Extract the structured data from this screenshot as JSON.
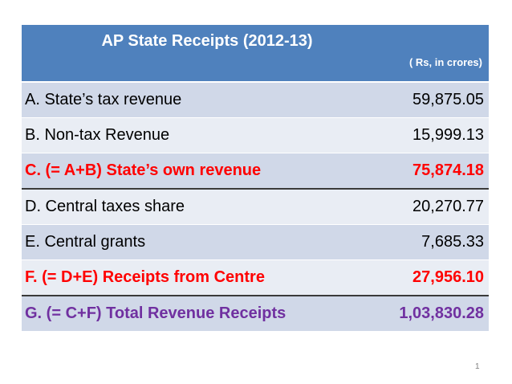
{
  "header": {
    "title": "AP State Receipts (2012-13)",
    "unit": "( Rs, in crores)"
  },
  "rows": [
    {
      "label": "A.  State’s tax revenue",
      "value": "59,875.05",
      "color": "#000000"
    },
    {
      "label": "B.  Non-tax Revenue",
      "value": "15,999.13",
      "color": "#000000"
    },
    {
      "label": "C. (= A+B) State’s own revenue",
      "value": "75,874.18",
      "color": "#ff0000"
    },
    {
      "label": "D. Central taxes share",
      "value": "20,270.77",
      "color": "#000000"
    },
    {
      "label": "E.  Central grants",
      "value": "7,685.33",
      "color": "#000000"
    },
    {
      "label": "F. (= D+E) Receipts from Centre",
      "value": "27,956.10",
      "color": "#ff0000"
    },
    {
      "label": "G. (= C+F) Total Revenue Receipts",
      "value": "1,03,830.28",
      "color": "#7030a0"
    }
  ],
  "colors": {
    "header_bg": "#4f81bd",
    "row_dark": "#d0d8e8",
    "row_light": "#e9edf4",
    "subtotal": "#ff0000",
    "total": "#7030a0"
  },
  "page_number": "1"
}
